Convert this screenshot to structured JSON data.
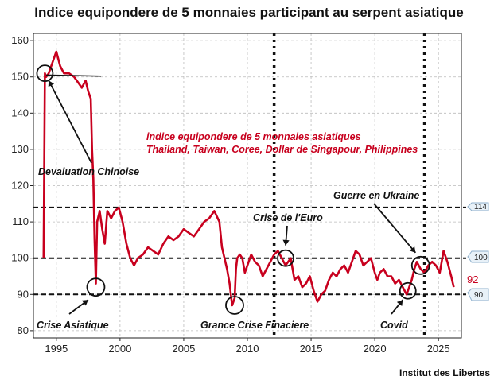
{
  "chart_data": {
    "type": "line",
    "title": "Indice equipondere de 5 monnaies participant au serpent asiatique",
    "xlabel": "",
    "ylabel": "",
    "xlim": [
      1993.2,
      2026.8
    ],
    "ylim": [
      78,
      162
    ],
    "yticks": [
      80,
      90,
      100,
      110,
      120,
      130,
      140,
      150,
      160
    ],
    "xticks": [
      1995,
      2000,
      2005,
      2010,
      2015,
      2020,
      2025
    ],
    "series": [
      {
        "name": "indice equipondere de 5 monnaies asiatiques",
        "color": "#c8001e",
        "x": [
          1994.0,
          1994.1,
          1994.2,
          1994.4,
          1994.6,
          1994.8,
          1995.0,
          1995.3,
          1995.6,
          1996.0,
          1996.4,
          1996.8,
          1997.0,
          1997.3,
          1997.5,
          1997.7,
          1997.8,
          1997.9,
          1998.0,
          1998.1,
          1998.2,
          1998.4,
          1998.6,
          1998.8,
          1999.0,
          1999.3,
          1999.6,
          1999.9,
          2000.2,
          2000.5,
          2000.8,
          2001.1,
          2001.4,
          2001.8,
          2002.2,
          2002.6,
          2003.0,
          2003.4,
          2003.8,
          2004.2,
          2004.6,
          2005.0,
          2005.4,
          2005.8,
          2006.2,
          2006.6,
          2007.0,
          2007.4,
          2007.8,
          2008.0,
          2008.2,
          2008.4,
          2008.6,
          2008.8,
          2009.0,
          2009.1,
          2009.2,
          2009.4,
          2009.6,
          2009.8,
          2010.0,
          2010.3,
          2010.6,
          2010.9,
          2011.2,
          2011.5,
          2011.8,
          2012.1,
          2012.4,
          2012.7,
          2013.0,
          2013.2,
          2013.4,
          2013.7,
          2014.0,
          2014.3,
          2014.6,
          2014.9,
          2015.2,
          2015.5,
          2015.8,
          2016.1,
          2016.4,
          2016.7,
          2017.0,
          2017.3,
          2017.6,
          2017.9,
          2018.2,
          2018.5,
          2018.8,
          2019.1,
          2019.4,
          2019.7,
          2020.0,
          2020.2,
          2020.4,
          2020.7,
          2021.0,
          2021.3,
          2021.6,
          2021.9,
          2022.2,
          2022.5,
          2022.7,
          2022.9,
          2023.1,
          2023.3,
          2023.6,
          2023.9,
          2024.2,
          2024.5,
          2024.8,
          2025.1,
          2025.4,
          2025.7,
          2026.0,
          2026.2
        ],
        "y": [
          100,
          151,
          150,
          151,
          153,
          155,
          157,
          153,
          151,
          151,
          150,
          148,
          147,
          149,
          146,
          144,
          130,
          122,
          105,
          93,
          110,
          113,
          108,
          104,
          113,
          111,
          113,
          114,
          110,
          104,
          100,
          98,
          100,
          101,
          103,
          102,
          101,
          104,
          106,
          105,
          106,
          108,
          107,
          106,
          108,
          110,
          111,
          113,
          110,
          103,
          100,
          97,
          93,
          87,
          89,
          97,
          100,
          101,
          100,
          96,
          98,
          101,
          99,
          98,
          95,
          97,
          99,
          101,
          102,
          100,
          98,
          99,
          100,
          94,
          95,
          92,
          93,
          95,
          91,
          88,
          90,
          91,
          94,
          96,
          95,
          97,
          98,
          96,
          99,
          102,
          101,
          98,
          99,
          100,
          96,
          94,
          96,
          97,
          95,
          95,
          93,
          94,
          92,
          90,
          92,
          94,
          97,
          99,
          97,
          96,
          98,
          99,
          98,
          96,
          102,
          99,
          95,
          92
        ]
      }
    ],
    "reference_lines": [
      {
        "y": 90,
        "label": "90",
        "style": "dashed"
      },
      {
        "y": 100,
        "label": "100",
        "style": "dashed"
      },
      {
        "y": 114,
        "label": "114",
        "style": "dashed"
      }
    ],
    "event_lines": [
      2012.1,
      2023.9
    ],
    "annotations": [
      {
        "text": "Devaluation Chinoise",
        "point": [
          1994.1,
          151
        ]
      },
      {
        "text": "Crise Asiatique",
        "point": [
          1998.1,
          92
        ]
      },
      {
        "text": "Grance Crise Finaciere",
        "point": [
          2009.0,
          87
        ]
      },
      {
        "text": "Crise de l'Euro",
        "point": [
          2013.0,
          100
        ]
      },
      {
        "text": "Guerre en Ukraine",
        "point": [
          2023.6,
          98
        ]
      },
      {
        "text": "Covid",
        "point": [
          2022.6,
          91
        ]
      }
    ],
    "legend": {
      "line1": "indice equipondere de 5 monnaies asiatiques",
      "line2": "Thailand, Taiwan, Coree, Dollar de Singapour, Philippines",
      "position": "center"
    },
    "current_value": "92"
  },
  "source": "Institut des Libertes"
}
